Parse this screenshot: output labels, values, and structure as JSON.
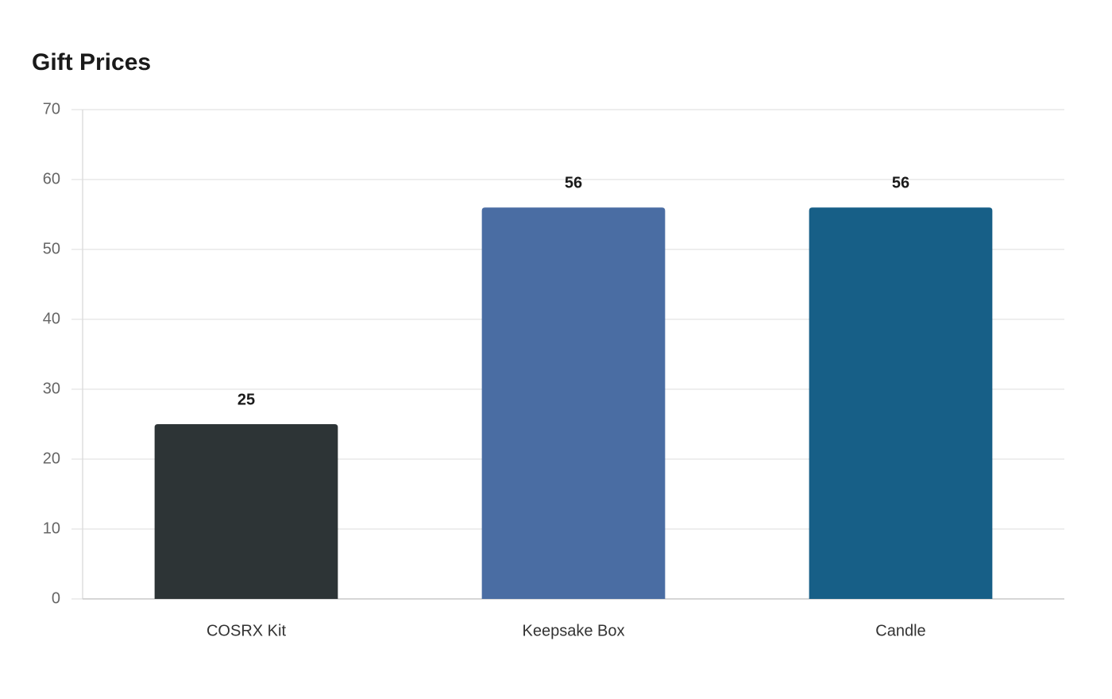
{
  "chart_data": {
    "type": "bar",
    "title": "Gift Prices",
    "categories": [
      "COSRX Kit",
      "Keepsake Box",
      "Candle"
    ],
    "values": [
      25,
      56,
      56
    ],
    "colors": [
      "#2d3436",
      "#4a6da3",
      "#175f87"
    ],
    "ylim": [
      0,
      70
    ],
    "yticks": [
      0,
      10,
      20,
      30,
      40,
      50,
      60,
      70
    ],
    "grid": true
  }
}
